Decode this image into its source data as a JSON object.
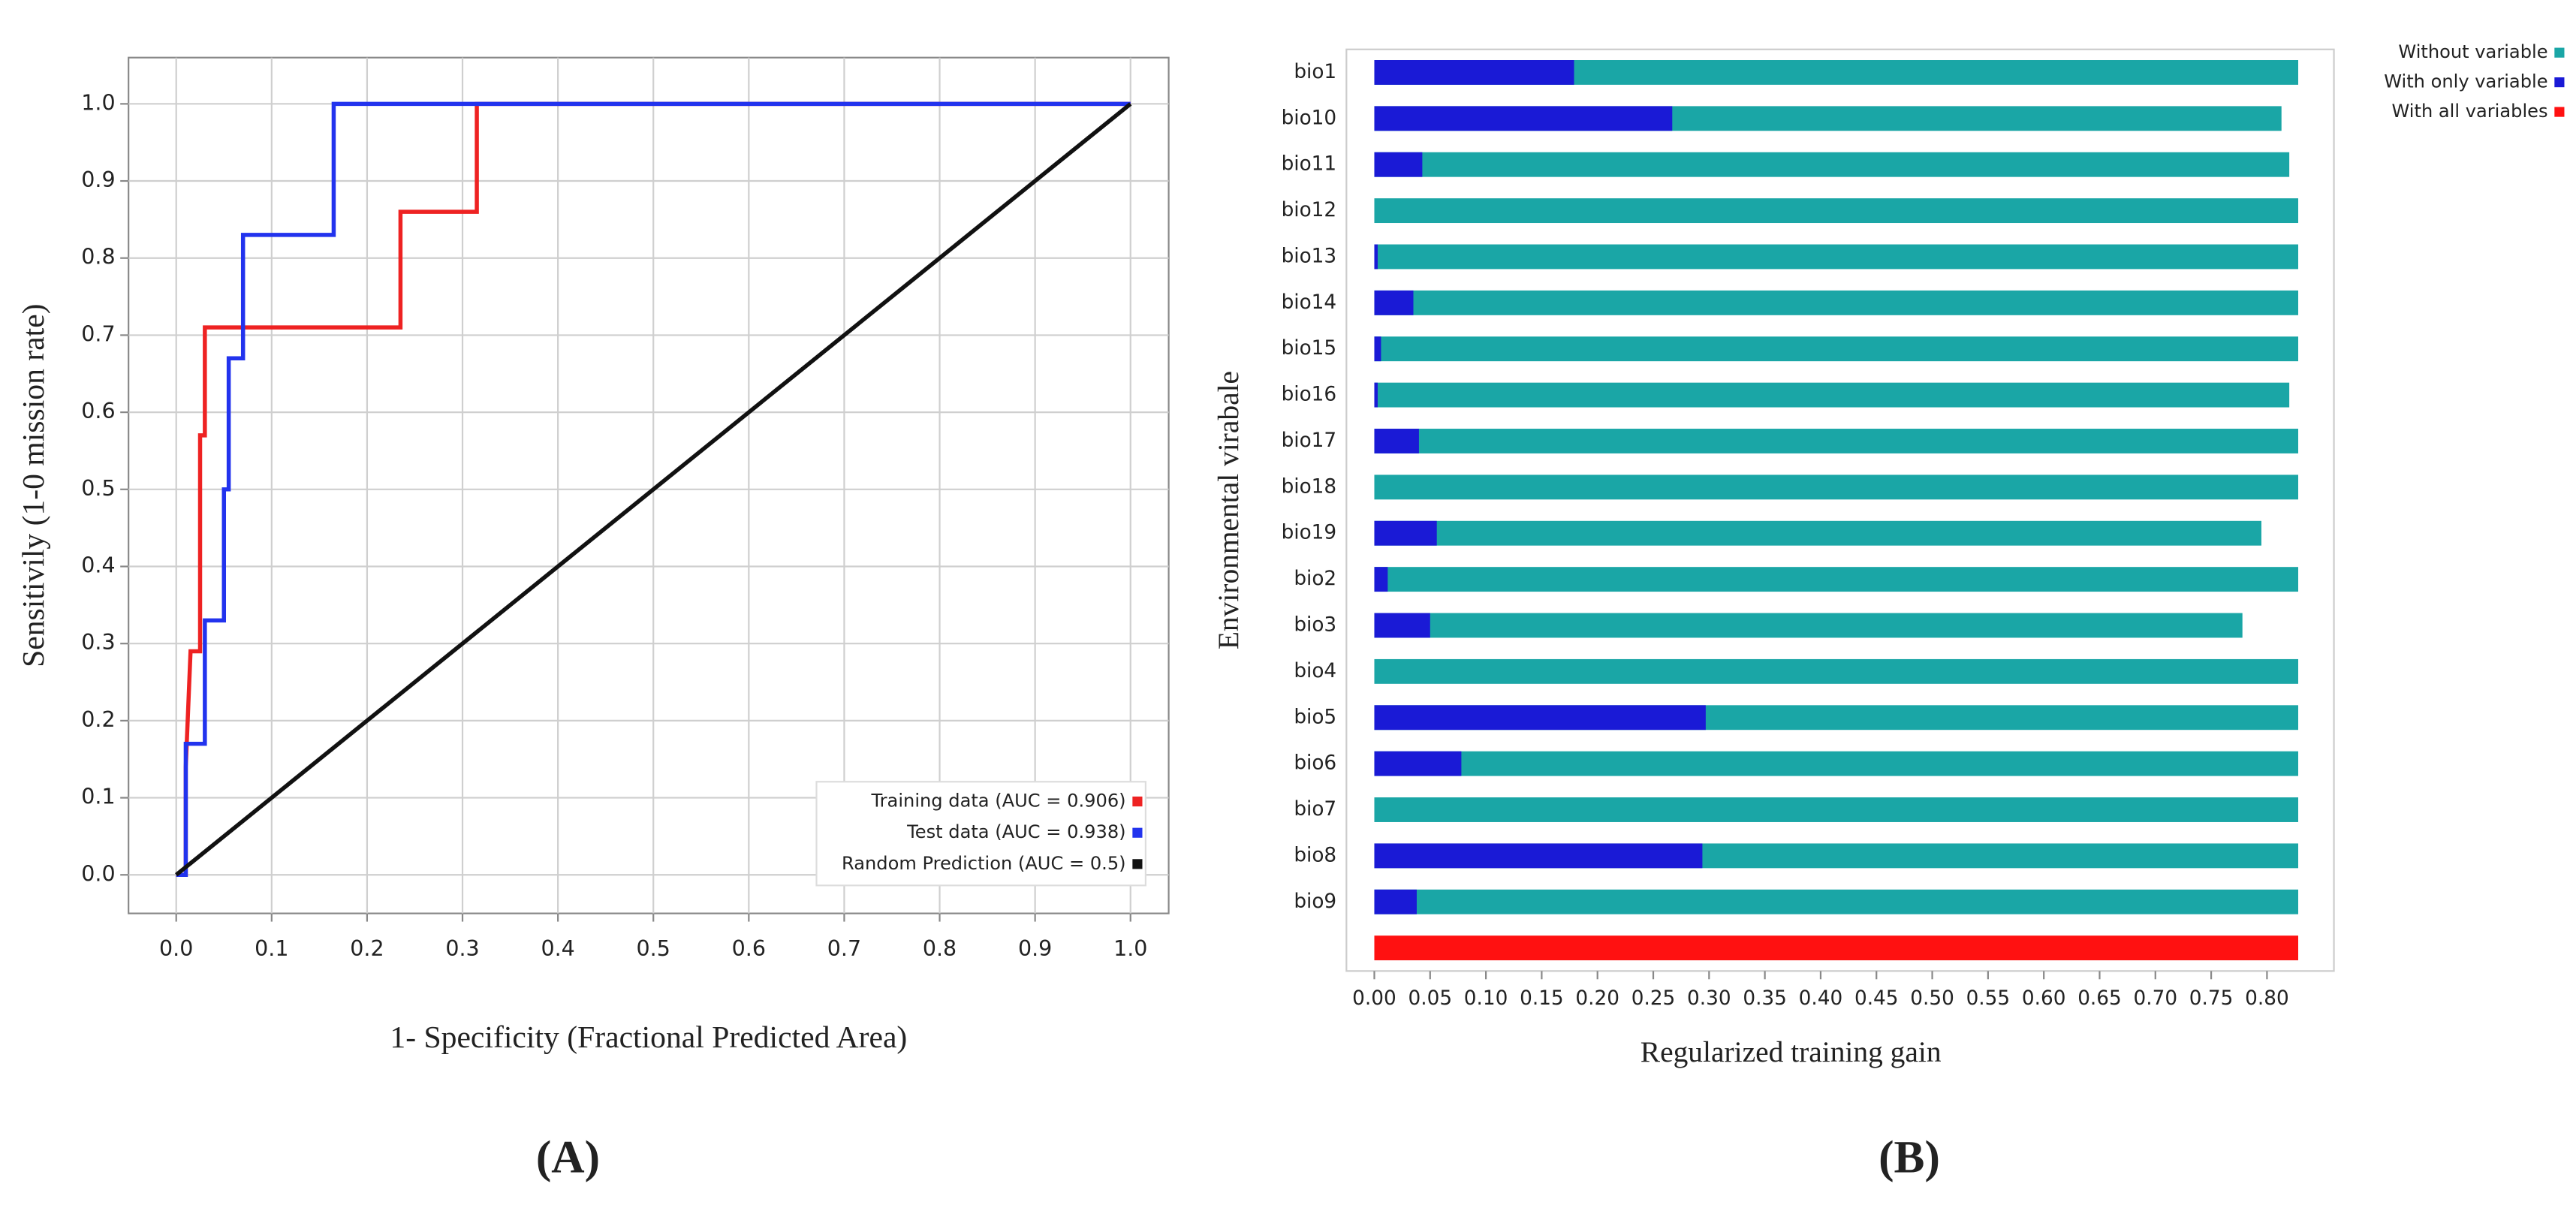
{
  "chart_data": [
    {
      "type": "line",
      "panel_label": "(A)",
      "x_label": "1- Specificity (Fractional Predicted Area)",
      "y_label": "Sensitivily (1-0 mission rate)",
      "xlim": [
        -0.05,
        1.04
      ],
      "ylim": [
        -0.05,
        1.06
      ],
      "xticks": [
        {
          "value": 0,
          "label": "0.0"
        },
        {
          "value": 0.1,
          "label": "0.1"
        },
        {
          "value": 0.2,
          "label": "0.2"
        },
        {
          "value": 0.3,
          "label": "0.3"
        },
        {
          "value": 0.4,
          "label": "0.4"
        },
        {
          "value": 0.5,
          "label": "0.5"
        },
        {
          "value": 0.6,
          "label": "0.6"
        },
        {
          "value": 0.7,
          "label": "0.7"
        },
        {
          "value": 0.8,
          "label": "0.8"
        },
        {
          "value": 0.9,
          "label": "0.9"
        },
        {
          "value": 1,
          "label": "1.0"
        }
      ],
      "yticks": [
        {
          "value": 0,
          "label": "0.0"
        },
        {
          "value": 0.1,
          "label": "0.1"
        },
        {
          "value": 0.2,
          "label": "0.2"
        },
        {
          "value": 0.3,
          "label": "0.3"
        },
        {
          "value": 0.4,
          "label": "0.4"
        },
        {
          "value": 0.5,
          "label": "0.5"
        },
        {
          "value": 0.6,
          "label": "0.6"
        },
        {
          "value": 0.7,
          "label": "0.7"
        },
        {
          "value": 0.8,
          "label": "0.8"
        },
        {
          "value": 0.9,
          "label": "0.9"
        },
        {
          "value": 1,
          "label": "1.0"
        }
      ],
      "grid": true,
      "legend": "lower right",
      "series": [
        {
          "name": "Training data (AUC = 0.906)",
          "color": "#ee2222",
          "x": [
            0,
            0.01,
            0.01,
            0.015,
            0.025,
            0.025,
            0.03,
            0.03,
            0.235,
            0.235,
            0.315,
            0.315,
            1
          ],
          "values": [
            0,
            0,
            0.14,
            0.29,
            0.29,
            0.57,
            0.57,
            0.71,
            0.71,
            0.86,
            0.86,
            1,
            1
          ]
        },
        {
          "name": "Test data (AUC = 0.938)",
          "color": "#2233ee",
          "x": [
            0,
            0.01,
            0.01,
            0.03,
            0.03,
            0.05,
            0.05,
            0.055,
            0.055,
            0.07,
            0.07,
            0.165,
            0.165,
            1
          ],
          "values": [
            0,
            0,
            0.17,
            0.17,
            0.33,
            0.33,
            0.5,
            0.5,
            0.67,
            0.67,
            0.83,
            0.83,
            1,
            1
          ]
        },
        {
          "name": "Random Prediction (AUC = 0.5)",
          "color": "#111111",
          "x": [
            0,
            1
          ],
          "values": [
            0,
            1
          ]
        }
      ]
    },
    {
      "type": "bar",
      "panel_label": "(B)",
      "x_label": "Regularized training gain",
      "y_label": "Environmental virabale",
      "xlim": [
        -0.025,
        0.86
      ],
      "xticks": [
        {
          "value": 0,
          "label": "0.00"
        },
        {
          "value": 0.05,
          "label": "0.05"
        },
        {
          "value": 0.1,
          "label": "0.10"
        },
        {
          "value": 0.15,
          "label": "0.15"
        },
        {
          "value": 0.2,
          "label": "0.20"
        },
        {
          "value": 0.25,
          "label": "0.25"
        },
        {
          "value": 0.3,
          "label": "0.30"
        },
        {
          "value": 0.35,
          "label": "0.35"
        },
        {
          "value": 0.4,
          "label": "0.40"
        },
        {
          "value": 0.45,
          "label": "0.45"
        },
        {
          "value": 0.5,
          "label": "0.50"
        },
        {
          "value": 0.55,
          "label": "0.55"
        },
        {
          "value": 0.6,
          "label": "0.60"
        },
        {
          "value": 0.65,
          "label": "0.65"
        },
        {
          "value": 0.7,
          "label": "0.70"
        },
        {
          "value": 0.75,
          "label": "0.75"
        },
        {
          "value": 0.8,
          "label": "0.80"
        }
      ],
      "grid": false,
      "legend": "upper right",
      "categories": [
        "bio1",
        "bio10",
        "bio11",
        "bio12",
        "bio13",
        "bio14",
        "bio15",
        "bio16",
        "bio17",
        "bio18",
        "bio19",
        "bio2",
        "bio3",
        "bio4",
        "bio5",
        "bio6",
        "bio7",
        "bio8",
        "bio9",
        null
      ],
      "series": [
        {
          "name": "Without variable",
          "color": "#1aa6a6",
          "values": [
            0.828,
            0.813,
            0.82,
            0.828,
            0.828,
            0.828,
            0.828,
            0.82,
            0.828,
            0.828,
            0.795,
            0.828,
            0.778,
            0.828,
            0.828,
            0.828,
            0.828,
            0.828,
            0.828,
            null
          ]
        },
        {
          "name": "With only variable",
          "color": "#1a1ad6",
          "values": [
            0.179,
            0.267,
            0.043,
            0,
            0.003,
            0.035,
            0.006,
            0.003,
            0.04,
            0,
            0.056,
            0.012,
            0.05,
            0,
            0.297,
            0.078,
            0,
            0.294,
            0.038,
            null
          ]
        },
        {
          "name": "With all variables",
          "color": "#ff1111",
          "values": [
            null,
            null,
            null,
            null,
            null,
            null,
            null,
            null,
            null,
            null,
            null,
            null,
            null,
            null,
            null,
            null,
            null,
            null,
            null,
            0.828
          ]
        }
      ]
    }
  ]
}
